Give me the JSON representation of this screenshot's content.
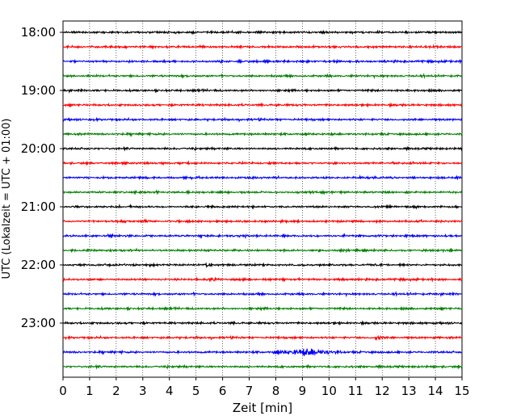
{
  "chart_data": {
    "type": "line",
    "subtype": "helicorder",
    "xlabel": "Zeit  [min]",
    "ylabel": "UTC (Lokalzeit = UTC + 01:00)",
    "xlim": [
      0,
      15
    ],
    "x_ticks": [
      "0",
      "1",
      "2",
      "3",
      "4",
      "5",
      "6",
      "7",
      "8",
      "9",
      "10",
      "11",
      "12",
      "13",
      "14",
      "15"
    ],
    "y_ticks": [
      {
        "label": "18:00",
        "trace": 0
      },
      {
        "label": "19:00",
        "trace": 4
      },
      {
        "label": "20:00",
        "trace": 8
      },
      {
        "label": "21:00",
        "trace": 12
      },
      {
        "label": "22:00",
        "trace": 16
      },
      {
        "label": "23:00",
        "trace": 20
      }
    ],
    "grid": "vertical dotted",
    "trace_colors": [
      "#000000",
      "#ff0000",
      "#0000ff",
      "#008000"
    ],
    "trace_count": 24,
    "events": [
      {
        "trace": 22,
        "x_start": 7.9,
        "x_end": 10.5,
        "amplitude": "high"
      },
      {
        "trace": 21,
        "x_start": 11.6,
        "x_end": 12.1,
        "amplitude": "medium"
      },
      {
        "trace": 17,
        "x_start": 5.5,
        "x_end": 5.9,
        "amplitude": "medium"
      },
      {
        "trace": 16,
        "x_start": 5.3,
        "x_end": 5.6,
        "amplitude": "medium"
      }
    ]
  }
}
